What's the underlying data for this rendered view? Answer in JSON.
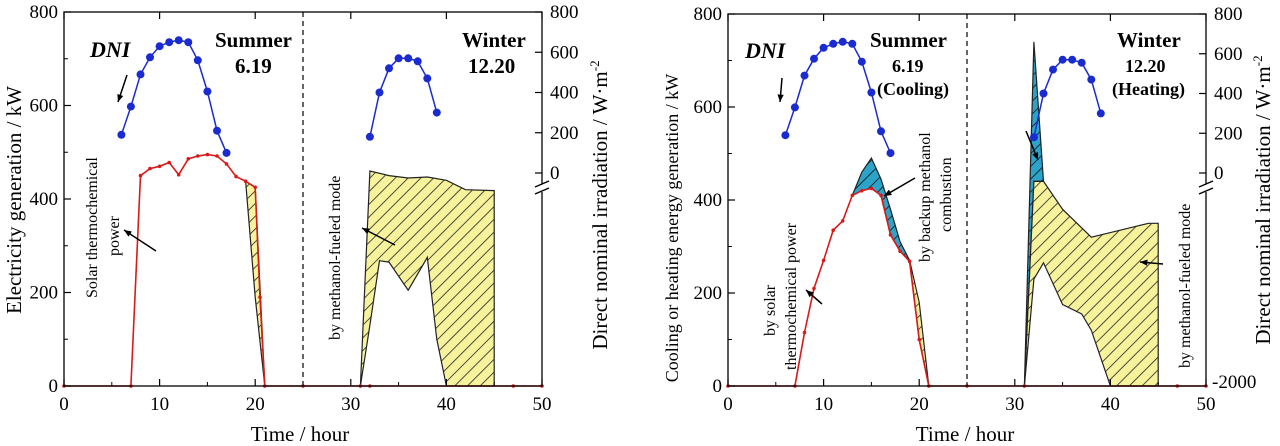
{
  "colors": {
    "red": "#d81a1a",
    "blue": "#1a2bd0",
    "yellow": "#f7f39c",
    "cyan": "#2ca3c8"
  },
  "chart_data": [
    {
      "type": "line",
      "xlabel": "Time / hour",
      "ylabel": "Electricity generation / kW",
      "y2label": "Direct nominal irradiation / W·m",
      "y2label_sup": "-2",
      "xlim": [
        0,
        50
      ],
      "ylim": [
        0,
        800
      ],
      "x_ticks": [
        "0",
        "10",
        "20",
        "30",
        "40",
        "50"
      ],
      "y_ticks": [
        "0",
        "200",
        "400",
        "600",
        "800"
      ],
      "y2_ticks": [
        "800",
        "600",
        "400",
        "200",
        "0"
      ],
      "labels": {
        "dni": "DNI",
        "summer": "Summer",
        "summer_date": "6.19",
        "winter": "Winter",
        "winter_date": "12.20",
        "solar": [
          "Solar thermochemical",
          "power"
        ],
        "methanol": "by methanol-fueled mode"
      },
      "series": [
        {
          "role": "solar",
          "x": [
            0,
            7,
            8,
            9,
            10,
            11,
            12,
            13,
            14,
            15,
            16,
            17,
            18,
            19,
            20,
            20.5,
            21,
            25,
            31,
            32,
            47,
            50
          ],
          "y": [
            0,
            0,
            450,
            465,
            470,
            478,
            452,
            486,
            492,
            495,
            492,
            475,
            448,
            438,
            425,
            190,
            0,
            0,
            0,
            0,
            0,
            0
          ]
        },
        {
          "role": "dni_summer",
          "x": [
            6,
            7,
            8,
            9,
            10,
            11,
            12,
            13,
            14,
            15,
            16,
            17
          ],
          "y": [
            190,
            330,
            490,
            575,
            630,
            650,
            660,
            650,
            560,
            405,
            210,
            100
          ]
        },
        {
          "role": "dni_winter",
          "x": [
            32,
            33,
            34,
            35,
            36,
            37,
            38,
            39
          ],
          "y": [
            180,
            400,
            520,
            570,
            570,
            555,
            470,
            300
          ]
        }
      ],
      "regions": [
        {
          "role": "methanol_summer_tail",
          "x": [
            20,
            21,
            21,
            20,
            19
          ],
          "y": [
            425,
            0,
            0,
            190,
            438
          ]
        },
        {
          "role": "methanol_winter",
          "x": [
            31,
            32,
            34,
            36,
            38,
            40,
            42,
            45,
            45,
            40,
            39,
            38,
            36,
            34,
            33,
            32,
            31
          ],
          "y": [
            0,
            460,
            450,
            445,
            447,
            440,
            420,
            418,
            0,
            0,
            100,
            275,
            205,
            265,
            268,
            130,
            0
          ]
        }
      ]
    },
    {
      "type": "line",
      "xlabel": "Time / hour",
      "ylabel": "Cooling or heating energy generation / kW",
      "y2label": "Direct nominal irradiation / W·m",
      "y2label_sup": "-2",
      "xlim": [
        0,
        50
      ],
      "ylim": [
        0,
        800
      ],
      "x_ticks": [
        "0",
        "10",
        "20",
        "30",
        "40",
        "50"
      ],
      "y_ticks": [
        "0",
        "200",
        "400",
        "600",
        "800"
      ],
      "y2_ticks": [
        "800",
        "600",
        "400",
        "200",
        "0",
        "-2000"
      ],
      "labels": {
        "dni": "DNI",
        "summer": "Summer",
        "summer_date": "6.19",
        "summer_mode": "(Cooling)",
        "winter": "Winter",
        "winter_date": "12.20",
        "winter_mode": "(Heating)",
        "solar": [
          "by solar",
          "thermochemical power"
        ],
        "backup": [
          "by backup methanol",
          "combustion"
        ],
        "methanol": "by methanol-fueled mode"
      },
      "series": [
        {
          "role": "solar",
          "x": [
            0,
            7,
            8,
            9,
            10,
            11,
            12,
            13,
            14,
            15,
            16,
            17,
            18,
            19,
            20,
            21,
            25,
            31,
            47,
            50
          ],
          "y": [
            0,
            0,
            115,
            210,
            270,
            335,
            355,
            410,
            420,
            425,
            410,
            325,
            290,
            268,
            100,
            0,
            0,
            0,
            0,
            0
          ]
        },
        {
          "role": "dni_summer",
          "x": [
            6,
            7,
            8,
            9,
            10,
            11,
            12,
            13,
            14,
            15,
            16,
            17
          ],
          "y": [
            190,
            330,
            490,
            575,
            630,
            650,
            660,
            650,
            560,
            405,
            210,
            100
          ]
        },
        {
          "role": "dni_winter",
          "x": [
            32,
            33,
            34,
            35,
            36,
            37,
            38,
            39
          ],
          "y": [
            180,
            400,
            520,
            570,
            570,
            555,
            470,
            300
          ]
        }
      ],
      "regions": [
        {
          "role": "backup_summer",
          "x": [
            13,
            14,
            15,
            16,
            17,
            18,
            19,
            18,
            17,
            16,
            15,
            14,
            13
          ],
          "y": [
            410,
            460,
            490,
            445,
            380,
            310,
            270,
            290,
            325,
            410,
            425,
            420,
            410
          ]
        },
        {
          "role": "methanol_summer_tail",
          "x": [
            19,
            20,
            21,
            20,
            19
          ],
          "y": [
            270,
            180,
            0,
            100,
            268
          ]
        },
        {
          "role": "backup_winter",
          "x": [
            31,
            32,
            33,
            32,
            31
          ],
          "y": [
            0,
            740,
            440,
            440,
            0
          ]
        },
        {
          "role": "methanol_winter",
          "x": [
            31,
            32,
            33,
            35,
            38,
            40,
            42,
            44,
            45,
            45,
            40,
            38,
            37,
            35,
            33,
            32,
            31
          ],
          "y": [
            0,
            440,
            440,
            380,
            320,
            330,
            340,
            350,
            350,
            0,
            0,
            120,
            155,
            175,
            265,
            230,
            0
          ]
        }
      ]
    }
  ]
}
